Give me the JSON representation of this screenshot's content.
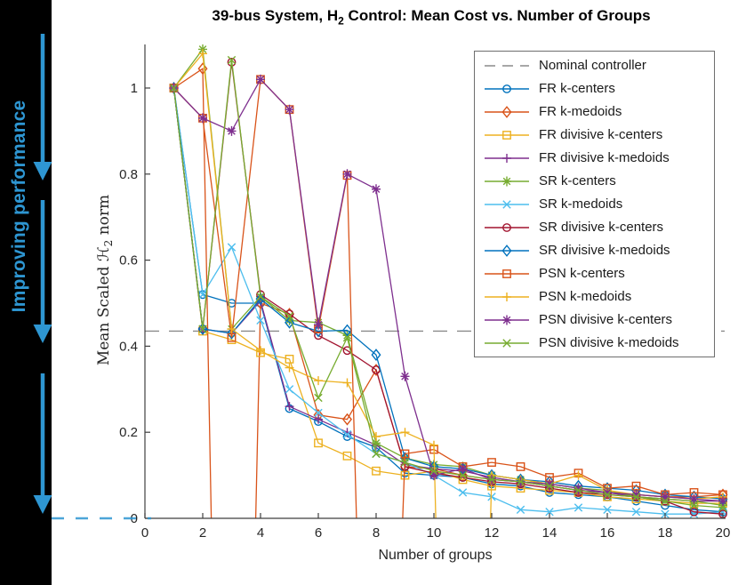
{
  "title": {
    "pre": "39-bus System, H",
    "sub": "2",
    "post": " Control: Mean Cost vs. Number of Groups",
    "full": "39-bus System, H_2 Control: Mean Cost vs. Number of Groups"
  },
  "annotation": {
    "label": "Improving performance",
    "color": "#2E96D2",
    "zero_reference_dash": "dashed blue line at y=0 from black band to y-axis"
  },
  "chart_data": {
    "type": "line",
    "title": "39-bus System, H_2 Control: Mean Cost vs. Number of Groups",
    "xlabel": "Number of groups",
    "ylabel": "Mean Scaled H_2 norm",
    "ylabel_parts": {
      "pre": "Mean Scaled ",
      "script_h": "ℋ",
      "sub": "2",
      "post": " norm"
    },
    "xlim": [
      0,
      20.1
    ],
    "ylim": [
      0,
      1.1
    ],
    "xticks": [
      0,
      2,
      4,
      6,
      8,
      10,
      12,
      14,
      16,
      18,
      20
    ],
    "xticklabels": [
      "0",
      "2",
      "4",
      "6",
      "8",
      "10",
      "12",
      "14",
      "16",
      "18",
      "20"
    ],
    "yticks": [
      0,
      0.2,
      0.4,
      0.6,
      0.8,
      1
    ],
    "yticklabels": [
      "0",
      "0.2",
      "0.4",
      "0.6",
      "0.8",
      "1"
    ],
    "grid": false,
    "legend_position": "upper right",
    "x": [
      1,
      2,
      3,
      4,
      5,
      6,
      7,
      8,
      9,
      10,
      11,
      12,
      13,
      14,
      15,
      16,
      17,
      18,
      19,
      20
    ],
    "nominal": {
      "label": "Nominal controller",
      "value": 0.435,
      "color": "#8a8a8a",
      "style": "dashed"
    },
    "clip_note": "values below 0 are off-scale dips; lines are clipped at y=0 producing near-vertical drops to the axis",
    "series": [
      {
        "name": "FR k-centers",
        "color": "#0072BD",
        "marker": "circle",
        "values": [
          1.0,
          0.52,
          0.5,
          0.5,
          0.255,
          0.225,
          0.19,
          0.165,
          0.105,
          0.1,
          0.095,
          0.08,
          0.075,
          0.06,
          0.055,
          0.05,
          0.04,
          0.03,
          0.02,
          0.015
        ]
      },
      {
        "name": "FR k-medoids",
        "color": "#D95319",
        "marker": "diamond",
        "values": [
          1.0,
          1.045,
          -2.5,
          0.5,
          0.475,
          0.24,
          0.23,
          0.345,
          0.12,
          0.115,
          0.1,
          0.09,
          0.085,
          0.075,
          0.065,
          0.06,
          0.055,
          0.05,
          0.05,
          0.055
        ]
      },
      {
        "name": "FR divisive k-centers",
        "color": "#EDB120",
        "marker": "square",
        "values": [
          1.0,
          0.435,
          0.415,
          0.385,
          0.37,
          0.175,
          0.145,
          0.11,
          0.1,
          0.11,
          0.09,
          0.075,
          0.07,
          0.065,
          0.06,
          0.05,
          0.045,
          0.04,
          0.035,
          0.035
        ]
      },
      {
        "name": "FR divisive k-medoids",
        "color": "#7E2F8E",
        "marker": "plus",
        "values": [
          1.0,
          0.44,
          0.43,
          0.505,
          0.26,
          0.23,
          0.2,
          0.17,
          0.125,
          0.115,
          0.11,
          0.095,
          0.085,
          0.075,
          0.065,
          0.06,
          0.05,
          0.045,
          0.04,
          0.04
        ]
      },
      {
        "name": "SR k-centers",
        "color": "#77AC30",
        "marker": "asterisk",
        "values": [
          1.0,
          1.09,
          0.44,
          0.515,
          0.46,
          0.455,
          0.425,
          0.175,
          0.14,
          0.125,
          0.12,
          0.1,
          0.09,
          0.08,
          0.07,
          0.065,
          0.05,
          0.045,
          0.04,
          0.03
        ]
      },
      {
        "name": "SR k-medoids",
        "color": "#4DBEEE",
        "marker": "x",
        "values": [
          1.0,
          0.52,
          0.63,
          0.46,
          0.3,
          0.245,
          0.195,
          0.15,
          0.13,
          0.1,
          0.06,
          0.05,
          0.02,
          0.015,
          0.025,
          0.02,
          0.015,
          0.01,
          0.01,
          0.015
        ]
      },
      {
        "name": "SR divisive k-centers",
        "color": "#A2142F",
        "marker": "circle",
        "values": [
          1.0,
          0.44,
          1.06,
          0.52,
          0.475,
          0.425,
          0.39,
          0.345,
          0.12,
          0.105,
          0.095,
          0.085,
          0.08,
          0.07,
          0.06,
          0.055,
          0.05,
          0.04,
          0.015,
          0.01
        ]
      },
      {
        "name": "SR divisive k-medoids",
        "color": "#0072BD",
        "marker": "diamond",
        "values": [
          1.0,
          0.44,
          0.43,
          0.51,
          0.455,
          0.435,
          0.437,
          0.38,
          0.14,
          0.12,
          0.115,
          0.1,
          0.09,
          0.085,
          0.075,
          0.07,
          0.065,
          0.055,
          0.05,
          0.045
        ]
      },
      {
        "name": "PSN k-centers",
        "color": "#D95319",
        "marker": "square",
        "values": [
          1.0,
          0.93,
          0.42,
          1.02,
          0.95,
          0.44,
          0.797,
          -1.7,
          0.15,
          0.16,
          0.12,
          0.13,
          0.12,
          0.095,
          0.105,
          0.07,
          0.075,
          0.055,
          0.06,
          0.055
        ]
      },
      {
        "name": "PSN k-medoids",
        "color": "#EDB120",
        "marker": "plus",
        "values": [
          1.0,
          1.08,
          0.44,
          0.39,
          0.35,
          0.32,
          0.315,
          0.19,
          0.2,
          0.17,
          -2.4,
          0.1,
          0.09,
          0.08,
          0.1,
          0.065,
          0.055,
          0.05,
          0.045,
          0.05
        ]
      },
      {
        "name": "PSN divisive k-centers",
        "color": "#7E2F8E",
        "marker": "asterisk",
        "values": [
          1.0,
          0.93,
          0.9,
          1.02,
          0.95,
          0.45,
          0.8,
          0.765,
          0.33,
          0.1,
          0.115,
          0.09,
          0.085,
          0.08,
          0.07,
          0.06,
          0.055,
          0.05,
          0.045,
          0.04
        ]
      },
      {
        "name": "PSN divisive k-medoids",
        "color": "#77AC30",
        "marker": "x",
        "values": [
          1.0,
          0.44,
          1.065,
          0.515,
          0.47,
          0.28,
          0.42,
          0.15,
          0.13,
          0.11,
          0.1,
          0.09,
          0.085,
          0.075,
          0.065,
          0.055,
          0.05,
          0.04,
          0.03,
          0.025
        ]
      }
    ]
  }
}
